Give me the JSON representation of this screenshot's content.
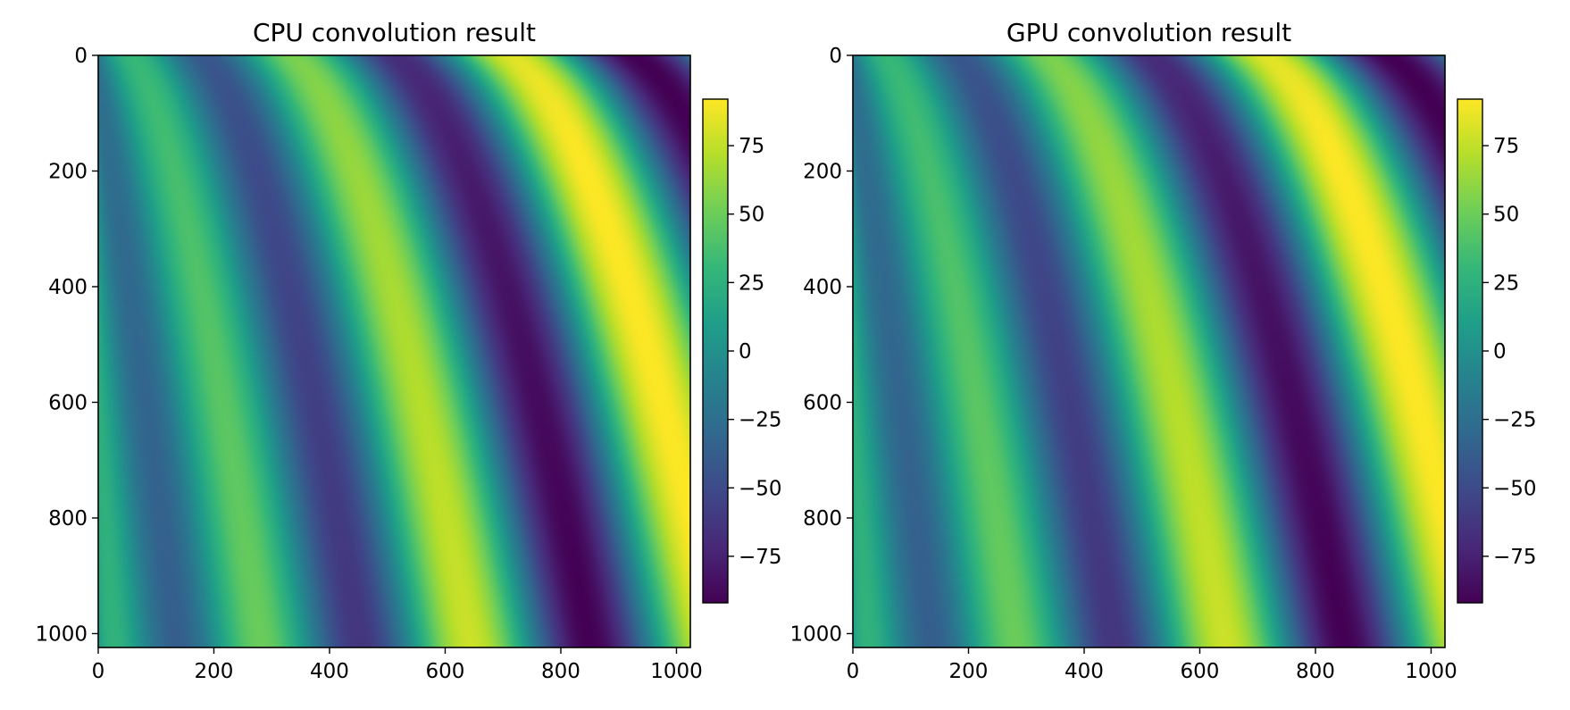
{
  "chart_data": [
    {
      "type": "heatmap",
      "title": "CPU convolution result",
      "xlabel": "",
      "ylabel": "",
      "xlim": [
        0,
        1024
      ],
      "ylim": [
        1024,
        0
      ],
      "x_ticks": [
        "0",
        "200",
        "400",
        "600",
        "800",
        "1000"
      ],
      "x_tick_values": [
        0,
        200,
        400,
        600,
        800,
        1000
      ],
      "y_ticks": [
        "0",
        "200",
        "400",
        "600",
        "800",
        "1000"
      ],
      "y_tick_values": [
        0,
        200,
        400,
        600,
        800,
        1000
      ],
      "colormap": "viridis",
      "colorbar": {
        "range": [
          -92,
          92
        ],
        "ticks": [
          "75",
          "50",
          "25",
          "0",
          "−25",
          "−50",
          "−75"
        ],
        "tick_values": [
          75,
          50,
          25,
          0,
          -25,
          -50,
          -75
        ]
      },
      "grid": false
    },
    {
      "type": "heatmap",
      "title": "GPU convolution result",
      "xlabel": "",
      "ylabel": "",
      "xlim": [
        0,
        1024
      ],
      "ylim": [
        1024,
        0
      ],
      "x_ticks": [
        "0",
        "200",
        "400",
        "600",
        "800",
        "1000"
      ],
      "x_tick_values": [
        0,
        200,
        400,
        600,
        800,
        1000
      ],
      "y_ticks": [
        "0",
        "200",
        "400",
        "600",
        "800",
        "1000"
      ],
      "y_tick_values": [
        0,
        200,
        400,
        600,
        800,
        1000
      ],
      "colormap": "viridis",
      "colorbar": {
        "range": [
          -92,
          92
        ],
        "ticks": [
          "75",
          "50",
          "25",
          "0",
          "−25",
          "−50",
          "−75"
        ],
        "tick_values": [
          75,
          50,
          25,
          0,
          -25,
          -50,
          -75
        ]
      },
      "grid": false
    }
  ],
  "colors": {
    "viridis": [
      "#440154",
      "#482878",
      "#3e4989",
      "#31688e",
      "#26828e",
      "#1f9e89",
      "#35b779",
      "#6ece58",
      "#b5de2b",
      "#fde725"
    ]
  }
}
